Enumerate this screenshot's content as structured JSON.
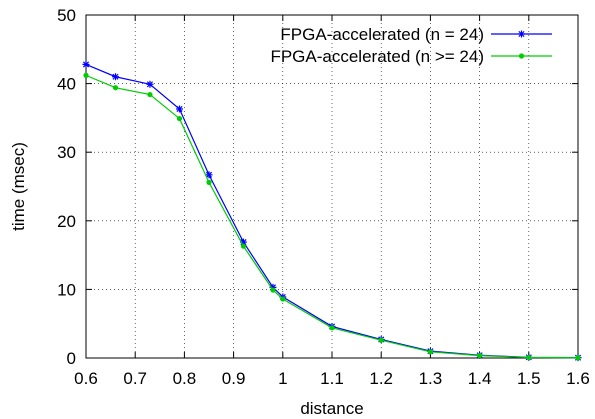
{
  "chart_data": {
    "type": "line",
    "title": "",
    "xlabel": "distance",
    "ylabel": "time (msec)",
    "xlim": [
      0.6,
      1.6
    ],
    "ylim": [
      0,
      50
    ],
    "grid": true,
    "legend_position": "top-right",
    "x_ticks": [
      "0.6",
      "0.7",
      "0.8",
      "0.9",
      "1",
      "1.1",
      "1.2",
      "1.3",
      "1.4",
      "1.5",
      "1.6"
    ],
    "y_ticks": [
      "0",
      "10",
      "20",
      "30",
      "40",
      "50"
    ],
    "series": [
      {
        "name": "FPGA-accelerated (n = 24)",
        "color": "#0000ff",
        "marker": "star",
        "x": [
          0.6,
          0.66,
          0.73,
          0.79,
          0.85,
          0.92,
          0.98,
          1.0,
          1.1,
          1.2,
          1.3,
          1.4,
          1.5,
          1.6
        ],
        "y": [
          42.8,
          41.0,
          39.9,
          36.3,
          26.7,
          16.9,
          10.3,
          8.9,
          4.6,
          2.7,
          1.0,
          0.4,
          0.1,
          0.05
        ]
      },
      {
        "name": "FPGA-accelerated (n >= 24)",
        "color": "#00cc00",
        "marker": "dot",
        "x": [
          0.6,
          0.66,
          0.73,
          0.79,
          0.85,
          0.92,
          0.98,
          1.0,
          1.1,
          1.2,
          1.3,
          1.4,
          1.5,
          1.6
        ],
        "y": [
          41.2,
          39.4,
          38.4,
          34.9,
          25.6,
          16.3,
          9.9,
          8.6,
          4.4,
          2.6,
          0.9,
          0.35,
          0.08,
          0.04
        ]
      }
    ]
  }
}
